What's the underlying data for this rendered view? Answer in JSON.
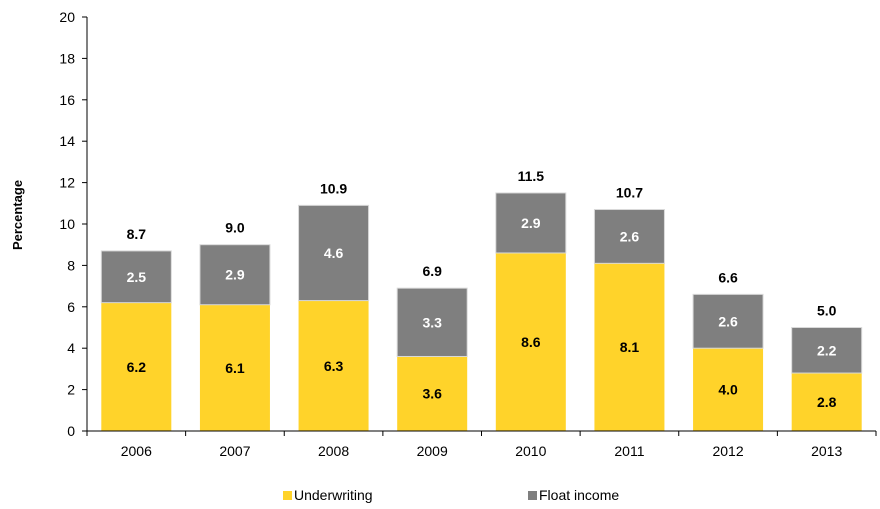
{
  "chart_data": {
    "type": "bar",
    "stacked": true,
    "categories": [
      "2006",
      "2007",
      "2008",
      "2009",
      "2010",
      "2011",
      "2012",
      "2013"
    ],
    "series": [
      {
        "name": "Underwriting",
        "color": "#FFD32A",
        "values": [
          6.2,
          6.1,
          6.3,
          3.6,
          8.6,
          8.1,
          4.0,
          2.8
        ],
        "labels": [
          "6.2",
          "6.1",
          "6.3",
          "3.6",
          "8.6",
          "8.1",
          "4.0",
          "2.8"
        ],
        "label_color": "#000000"
      },
      {
        "name": "Float income",
        "color": "#7F7F7F",
        "values": [
          2.5,
          2.9,
          4.6,
          3.3,
          2.9,
          2.6,
          2.6,
          2.2
        ],
        "labels": [
          "2.5",
          "2.9",
          "4.6",
          "3.3",
          "2.9",
          "2.6",
          "2.6",
          "2.2"
        ],
        "label_color": "#FFFFFF"
      }
    ],
    "totals": [
      8.7,
      9.0,
      10.9,
      6.9,
      11.5,
      10.7,
      6.6,
      5.0
    ],
    "total_labels": [
      "8.7",
      "9.0",
      "10.9",
      "6.9",
      "11.5",
      "10.7",
      "6.6",
      "5.0"
    ],
    "ylabel": "Percentage",
    "ylim": [
      0,
      20
    ],
    "yticks": [
      0,
      2,
      4,
      6,
      8,
      10,
      12,
      14,
      16,
      18,
      20
    ],
    "ytick_labels": [
      "0",
      "2",
      "4",
      "6",
      "8",
      "10",
      "12",
      "14",
      "16",
      "18",
      "20"
    ],
    "grid": false,
    "legend_position": "bottom"
  }
}
